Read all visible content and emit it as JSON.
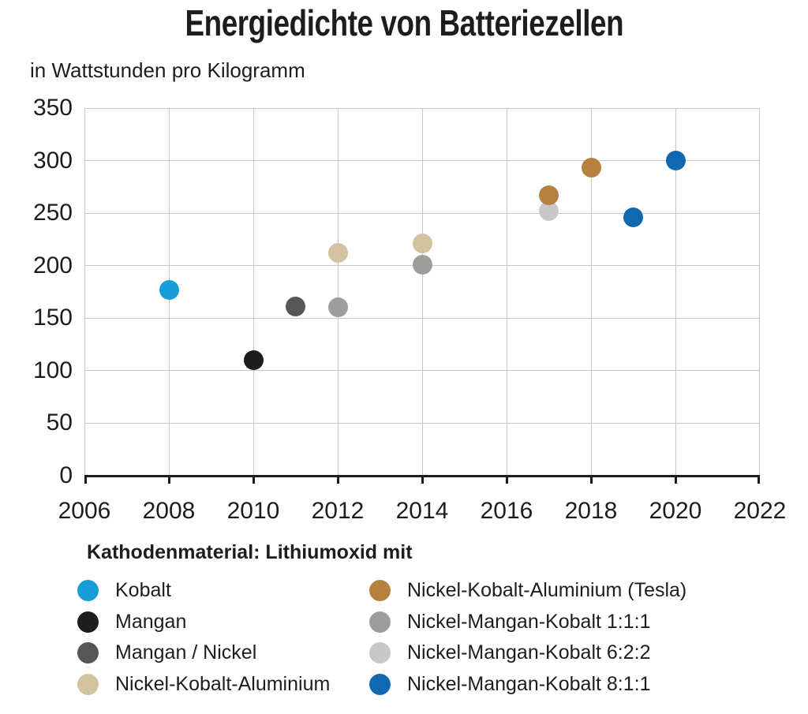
{
  "colors": {
    "text": "#1d1d1b",
    "grid": "#c9c9c9",
    "axis": "#1d1d1b"
  },
  "chart_data": {
    "type": "scatter",
    "title": "Energiedichte von Batteriezellen",
    "subtitle": "in Wattstunden pro Kilogramm",
    "xlabel": "",
    "ylabel": "in Wattstunden pro Kilogramm",
    "xlim": [
      2006,
      2022
    ],
    "xtick_step": 2,
    "xticks": [
      "2006",
      "2008",
      "2010",
      "2012",
      "2014",
      "2016",
      "2018",
      "2020",
      "2022"
    ],
    "ylim": [
      0,
      350
    ],
    "ytick_step": 50,
    "yticks": [
      "0",
      "50",
      "100",
      "150",
      "200",
      "250",
      "300",
      "350"
    ],
    "grid": true,
    "series": [
      {
        "name": "Kobalt",
        "color": "#189dd9",
        "points": [
          {
            "x": 2008,
            "y": 177
          }
        ]
      },
      {
        "name": "Mangan",
        "color": "#1d1d1b",
        "points": [
          {
            "x": 2010,
            "y": 110
          }
        ]
      },
      {
        "name": "Mangan / Nickel",
        "color": "#575756",
        "points": [
          {
            "x": 2011,
            "y": 161
          }
        ]
      },
      {
        "name": "Nickel-Kobalt-Aluminium",
        "color": "#d3c3a1",
        "points": [
          {
            "x": 2012,
            "y": 212
          },
          {
            "x": 2014,
            "y": 221
          }
        ]
      },
      {
        "name": "Nickel-Mangan-Kobalt 1:1:1",
        "color": "#9d9d9c",
        "points": [
          {
            "x": 2012,
            "y": 160
          },
          {
            "x": 2014,
            "y": 201
          }
        ]
      },
      {
        "name": "Nickel-Mangan-Kobalt 6:2:2",
        "color": "#c8c8c8",
        "points": [
          {
            "x": 2017,
            "y": 252
          }
        ]
      },
      {
        "name": "Nickel-Kobalt-Aluminium (Tesla)",
        "color": "#b5813f",
        "points": [
          {
            "x": 2017,
            "y": 267
          },
          {
            "x": 2018,
            "y": 293
          }
        ]
      },
      {
        "name": "Nickel-Mangan-Kobalt 8:1:1",
        "color": "#1068b1",
        "points": [
          {
            "x": 2019,
            "y": 246
          },
          {
            "x": 2020,
            "y": 300
          }
        ]
      }
    ],
    "legend_title": "Kathodenmaterial: Lithiumoxid mit",
    "legend_position": "bottom",
    "legend_columns": [
      [
        "Kobalt",
        "Mangan",
        "Mangan / Nickel",
        "Nickel-Kobalt-Aluminium"
      ],
      [
        "Nickel-Kobalt-Aluminium (Tesla)",
        "Nickel-Mangan-Kobalt 1:1:1",
        "Nickel-Mangan-Kobalt 6:2:2",
        "Nickel-Mangan-Kobalt 8:1:1"
      ]
    ]
  }
}
